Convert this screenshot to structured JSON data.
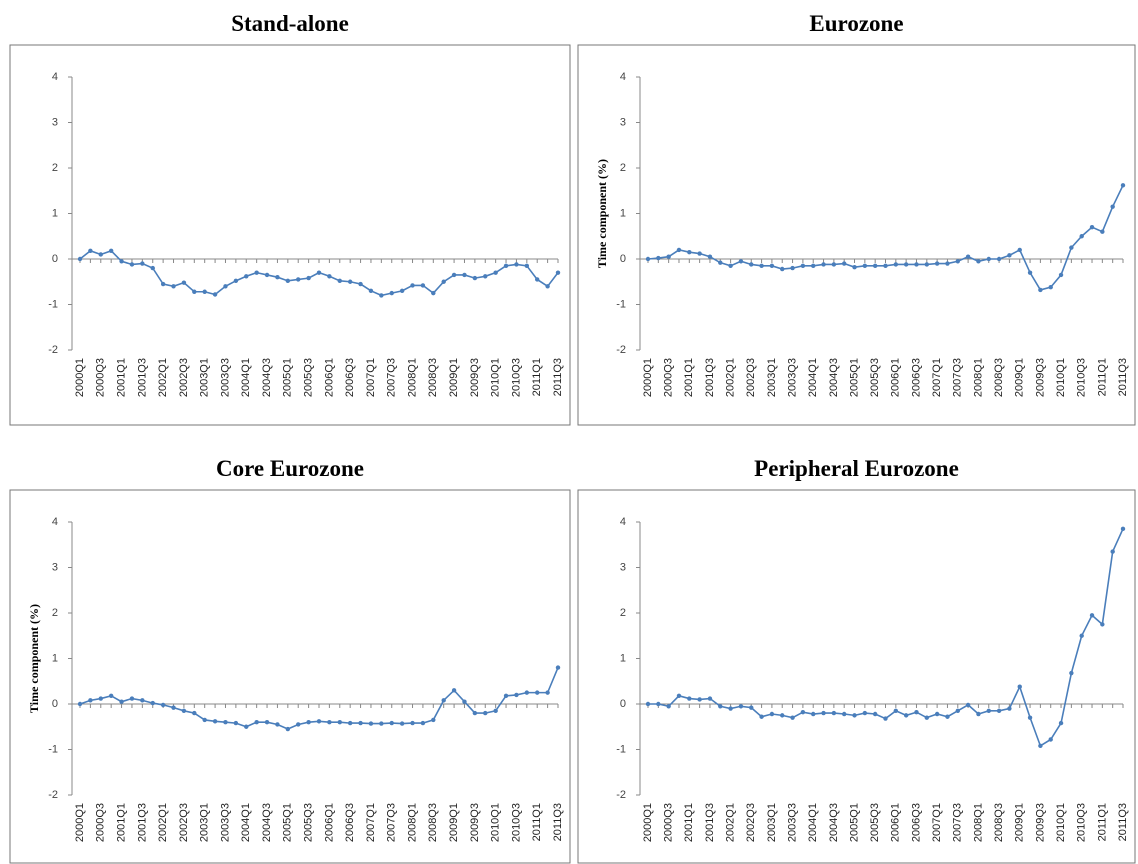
{
  "chart_data": [
    {
      "type": "line",
      "title": "Stand-alone",
      "categories": [
        "2000Q1",
        null,
        "2000Q3",
        null,
        "2001Q1",
        null,
        "2001Q3",
        null,
        "2002Q1",
        null,
        "2002Q3",
        null,
        "2003Q1",
        null,
        "2003Q3",
        null,
        "2004Q1",
        null,
        "2004Q3",
        null,
        "2005Q1",
        null,
        "2005Q3",
        null,
        "2006Q1",
        null,
        "2006Q3",
        null,
        "2007Q1",
        null,
        "2007Q3",
        null,
        "2008Q1",
        null,
        "2008Q3",
        null,
        "2009Q1",
        null,
        "2009Q3",
        null,
        "2010Q1",
        null,
        "2010Q3",
        null,
        "2011Q1",
        null,
        "2011Q3"
      ],
      "values": [
        0,
        0.18,
        0.1,
        0.18,
        -0.05,
        -0.12,
        -0.1,
        -0.2,
        -0.55,
        -0.6,
        -0.52,
        -0.72,
        -0.72,
        -0.78,
        -0.6,
        -0.48,
        -0.38,
        -0.3,
        -0.35,
        -0.4,
        -0.48,
        -0.45,
        -0.42,
        -0.3,
        -0.38,
        -0.48,
        -0.5,
        -0.55,
        -0.7,
        -0.8,
        -0.75,
        -0.7,
        -0.58,
        -0.58,
        -0.75,
        -0.5,
        -0.35,
        -0.35,
        -0.42,
        -0.38,
        -0.3,
        -0.15,
        -0.12,
        -0.15,
        -0.45,
        -0.6,
        -0.3
      ],
      "color": "#4a7ebb",
      "ylim": [
        -2,
        4
      ],
      "yticks": [
        -2,
        -1,
        0,
        1,
        2,
        3,
        4
      ],
      "grid": false
    },
    {
      "type": "line",
      "title": "Eurozone",
      "ylabel": "Time component (%)",
      "categories": [
        "2000Q1",
        null,
        "2000Q3",
        null,
        "2001Q1",
        null,
        "2001Q3",
        null,
        "2002Q1",
        null,
        "2002Q3",
        null,
        "2003Q1",
        null,
        "2003Q3",
        null,
        "2004Q1",
        null,
        "2004Q3",
        null,
        "2005Q1",
        null,
        "2005Q3",
        null,
        "2006Q1",
        null,
        "2006Q3",
        null,
        "2007Q1",
        null,
        "2007Q3",
        null,
        "2008Q1",
        null,
        "2008Q3",
        null,
        "2009Q1",
        null,
        "2009Q3",
        null,
        "2010Q1",
        null,
        "2010Q3",
        null,
        "2011Q1",
        null,
        "2011Q3"
      ],
      "values": [
        0,
        0.02,
        0.05,
        0.2,
        0.15,
        0.12,
        0.05,
        -0.08,
        -0.15,
        -0.05,
        -0.12,
        -0.15,
        -0.15,
        -0.22,
        -0.2,
        -0.15,
        -0.15,
        -0.12,
        -0.12,
        -0.1,
        -0.18,
        -0.15,
        -0.15,
        -0.15,
        -0.12,
        -0.12,
        -0.12,
        -0.12,
        -0.1,
        -0.1,
        -0.05,
        0.05,
        -0.05,
        0,
        0,
        0.08,
        0.2,
        -0.3,
        -0.68,
        -0.62,
        -0.35,
        0.25,
        0.5,
        0.7,
        0.6,
        1.15,
        1.62
      ],
      "color": "#4a7ebb",
      "ylim": [
        -2,
        4
      ],
      "yticks": [
        -2,
        -1,
        0,
        1,
        2,
        3,
        4
      ],
      "grid": false
    },
    {
      "type": "line",
      "title": "Core Eurozone",
      "ylabel": "Time component (%)",
      "categories": [
        "2000Q1",
        null,
        "2000Q3",
        null,
        "2001Q1",
        null,
        "2001Q3",
        null,
        "2002Q1",
        null,
        "2002Q3",
        null,
        "2003Q1",
        null,
        "2003Q3",
        null,
        "2004Q1",
        null,
        "2004Q3",
        null,
        "2005Q1",
        null,
        "2005Q3",
        null,
        "2006Q1",
        null,
        "2006Q3",
        null,
        "2007Q1",
        null,
        "2007Q3",
        null,
        "2008Q1",
        null,
        "2008Q3",
        null,
        "2009Q1",
        null,
        "2009Q3",
        null,
        "2010Q1",
        null,
        "2010Q3",
        null,
        "2011Q1",
        null,
        "2011Q3"
      ],
      "values": [
        0,
        0.08,
        0.12,
        0.18,
        0.05,
        0.12,
        0.08,
        0.02,
        -0.02,
        -0.08,
        -0.15,
        -0.2,
        -0.35,
        -0.38,
        -0.4,
        -0.42,
        -0.5,
        -0.4,
        -0.4,
        -0.45,
        -0.55,
        -0.45,
        -0.4,
        -0.38,
        -0.4,
        -0.4,
        -0.42,
        -0.42,
        -0.43,
        -0.43,
        -0.42,
        -0.43,
        -0.42,
        -0.42,
        -0.35,
        0.08,
        0.3,
        0.05,
        -0.2,
        -0.2,
        -0.15,
        0.18,
        0.2,
        0.25,
        0.25,
        0.25,
        0.8
      ],
      "color": "#4a7ebb",
      "ylim": [
        -2,
        4
      ],
      "yticks": [
        -2,
        -1,
        0,
        1,
        2,
        3,
        4
      ],
      "grid": false
    },
    {
      "type": "line",
      "title": "Peripheral Eurozone",
      "categories": [
        "2000Q1",
        null,
        "2000Q3",
        null,
        "2001Q1",
        null,
        "2001Q3",
        null,
        "2002Q1",
        null,
        "2002Q3",
        null,
        "2003Q1",
        null,
        "2003Q3",
        null,
        "2004Q1",
        null,
        "2004Q3",
        null,
        "2005Q1",
        null,
        "2005Q3",
        null,
        "2006Q1",
        null,
        "2006Q3",
        null,
        "2007Q1",
        null,
        "2007Q3",
        null,
        "2008Q1",
        null,
        "2008Q3",
        null,
        "2009Q1",
        null,
        "2009Q3",
        null,
        "2010Q1",
        null,
        "2010Q3",
        null,
        "2011Q1",
        null,
        "2011Q3"
      ],
      "values": [
        0,
        0,
        -0.05,
        0.18,
        0.12,
        0.1,
        0.12,
        -0.05,
        -0.1,
        -0.05,
        -0.08,
        -0.28,
        -0.22,
        -0.25,
        -0.3,
        -0.18,
        -0.22,
        -0.2,
        -0.2,
        -0.22,
        -0.25,
        -0.2,
        -0.22,
        -0.32,
        -0.15,
        -0.25,
        -0.18,
        -0.3,
        -0.22,
        -0.28,
        -0.15,
        -0.02,
        -0.22,
        -0.15,
        -0.15,
        -0.1,
        0.38,
        -0.3,
        -0.92,
        -0.78,
        -0.42,
        0.68,
        1.5,
        1.95,
        1.75,
        3.35,
        3.85
      ],
      "color": "#4a7ebb",
      "ylim": [
        -2,
        4
      ],
      "yticks": [
        -2,
        -1,
        0,
        1,
        2,
        3,
        4
      ],
      "grid": false
    }
  ]
}
